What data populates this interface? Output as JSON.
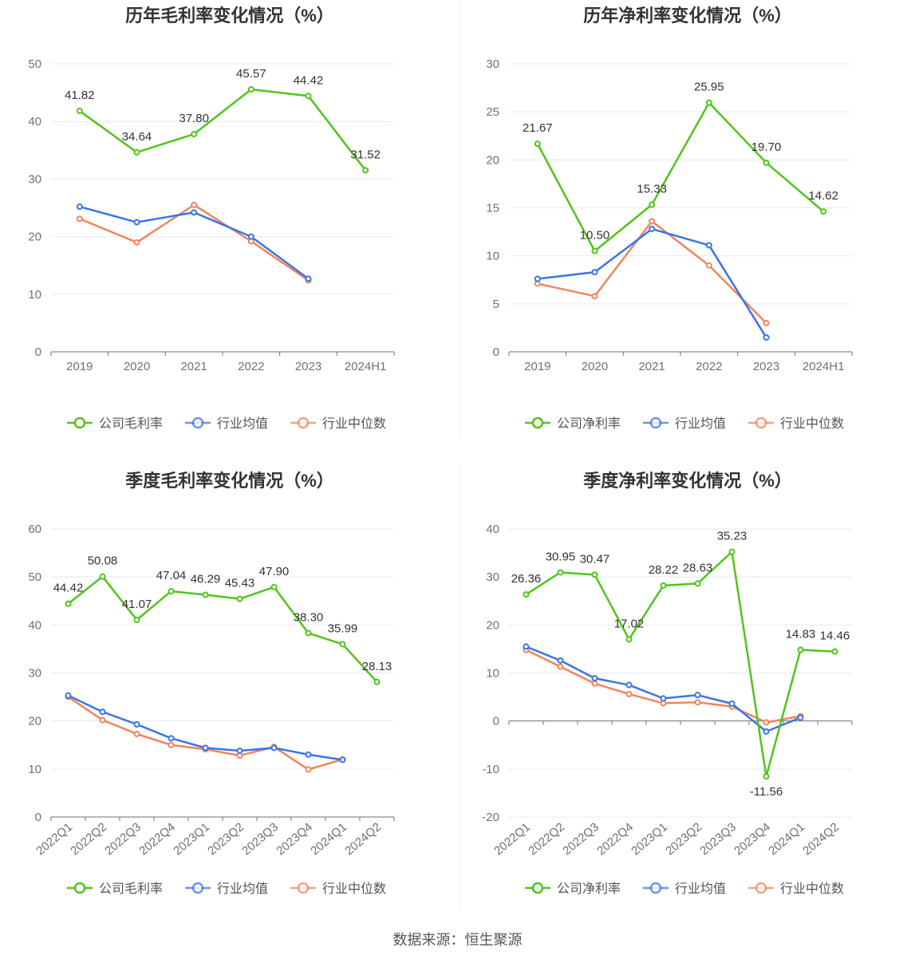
{
  "source": "数据来源：恒生聚源",
  "colors": {
    "company": "#52c41a",
    "industry_avg": "#3b74e6",
    "industry_median": "#f2845c",
    "grid": "#e6e9f2",
    "axis": "#6e7079"
  },
  "chart_data": [
    {
      "type": "line",
      "title": "历年毛利率变化情况（%）",
      "categories": [
        "2019",
        "2020",
        "2021",
        "2022",
        "2023",
        "2024H1"
      ],
      "ylim": [
        0,
        50
      ],
      "yticks": [
        0,
        10,
        20,
        30,
        40,
        50
      ],
      "rotate_x": false,
      "series": [
        {
          "name": "公司毛利率",
          "key": "company",
          "values": [
            41.82,
            34.64,
            37.8,
            45.57,
            44.42,
            31.52
          ],
          "labels": [
            "41.82",
            "34.64",
            "37.80",
            "45.57",
            "44.42",
            "31.52"
          ]
        },
        {
          "name": "行业均值",
          "key": "industry_avg",
          "values": [
            25.2,
            22.5,
            24.2,
            20.0,
            12.7,
            null
          ]
        },
        {
          "name": "行业中位数",
          "key": "industry_median",
          "values": [
            23.1,
            19.0,
            25.5,
            19.2,
            12.4,
            null
          ]
        }
      ]
    },
    {
      "type": "line",
      "title": "历年净利率变化情况（%）",
      "categories": [
        "2019",
        "2020",
        "2021",
        "2022",
        "2023",
        "2024H1"
      ],
      "ylim": [
        0,
        30
      ],
      "yticks": [
        0,
        5,
        10,
        15,
        20,
        25,
        30
      ],
      "rotate_x": false,
      "series": [
        {
          "name": "公司净利率",
          "key": "company",
          "values": [
            21.67,
            10.5,
            15.33,
            25.95,
            19.7,
            14.62
          ],
          "labels": [
            "21.67",
            "10.50",
            "15.33",
            "25.95",
            "19.70",
            "14.62"
          ]
        },
        {
          "name": "行业均值",
          "key": "industry_avg",
          "values": [
            7.6,
            8.3,
            12.8,
            11.1,
            1.5,
            null
          ]
        },
        {
          "name": "行业中位数",
          "key": "industry_median",
          "values": [
            7.1,
            5.8,
            13.6,
            9.0,
            3.0,
            null
          ]
        }
      ]
    },
    {
      "type": "line",
      "title": "季度毛利率变化情况（%）",
      "categories": [
        "2022Q1",
        "2022Q2",
        "2022Q3",
        "2022Q4",
        "2023Q1",
        "2023Q2",
        "2023Q3",
        "2023Q4",
        "2024Q1",
        "2024Q2"
      ],
      "ylim": [
        0,
        60
      ],
      "yticks": [
        0,
        10,
        20,
        30,
        40,
        50,
        60
      ],
      "rotate_x": true,
      "series": [
        {
          "name": "公司毛利率",
          "key": "company",
          "values": [
            44.42,
            50.08,
            41.07,
            47.04,
            46.29,
            45.43,
            47.9,
            38.3,
            35.99,
            28.13
          ],
          "labels": [
            "44.42",
            "50.08",
            "41.07",
            "47.04",
            "46.29",
            "45.43",
            "47.90",
            "38.30",
            "35.99",
            "28.13"
          ]
        },
        {
          "name": "行业均值",
          "key": "industry_avg",
          "values": [
            25.3,
            21.9,
            19.3,
            16.4,
            14.4,
            13.8,
            14.4,
            13.0,
            11.9,
            null
          ]
        },
        {
          "name": "行业中位数",
          "key": "industry_median",
          "values": [
            25.0,
            20.2,
            17.3,
            15.0,
            14.1,
            12.8,
            14.6,
            9.9,
            12.0,
            null
          ]
        }
      ]
    },
    {
      "type": "line",
      "title": "季度净利率变化情况（%）",
      "categories": [
        "2022Q1",
        "2022Q2",
        "2022Q3",
        "2022Q4",
        "2023Q1",
        "2023Q2",
        "2023Q3",
        "2023Q4",
        "2024Q1",
        "2024Q2"
      ],
      "ylim": [
        -20,
        40
      ],
      "yticks": [
        -20,
        -10,
        0,
        10,
        20,
        30,
        40
      ],
      "rotate_x": true,
      "series": [
        {
          "name": "公司净利率",
          "key": "company",
          "values": [
            26.36,
            30.95,
            30.47,
            17.02,
            28.22,
            28.63,
            35.23,
            -11.56,
            14.83,
            14.46
          ],
          "labels": [
            "26.36",
            "30.95",
            "30.47",
            "17.02",
            "28.22",
            "28.63",
            "35.23",
            "-11.56",
            "14.83",
            "14.46"
          ]
        },
        {
          "name": "行业均值",
          "key": "industry_avg",
          "values": [
            15.5,
            12.6,
            8.9,
            7.5,
            4.7,
            5.4,
            3.6,
            -2.2,
            0.7,
            null
          ]
        },
        {
          "name": "行业中位数",
          "key": "industry_median",
          "values": [
            14.8,
            11.3,
            7.8,
            5.6,
            3.7,
            3.9,
            3.0,
            -0.3,
            1.0,
            null
          ]
        }
      ]
    }
  ]
}
